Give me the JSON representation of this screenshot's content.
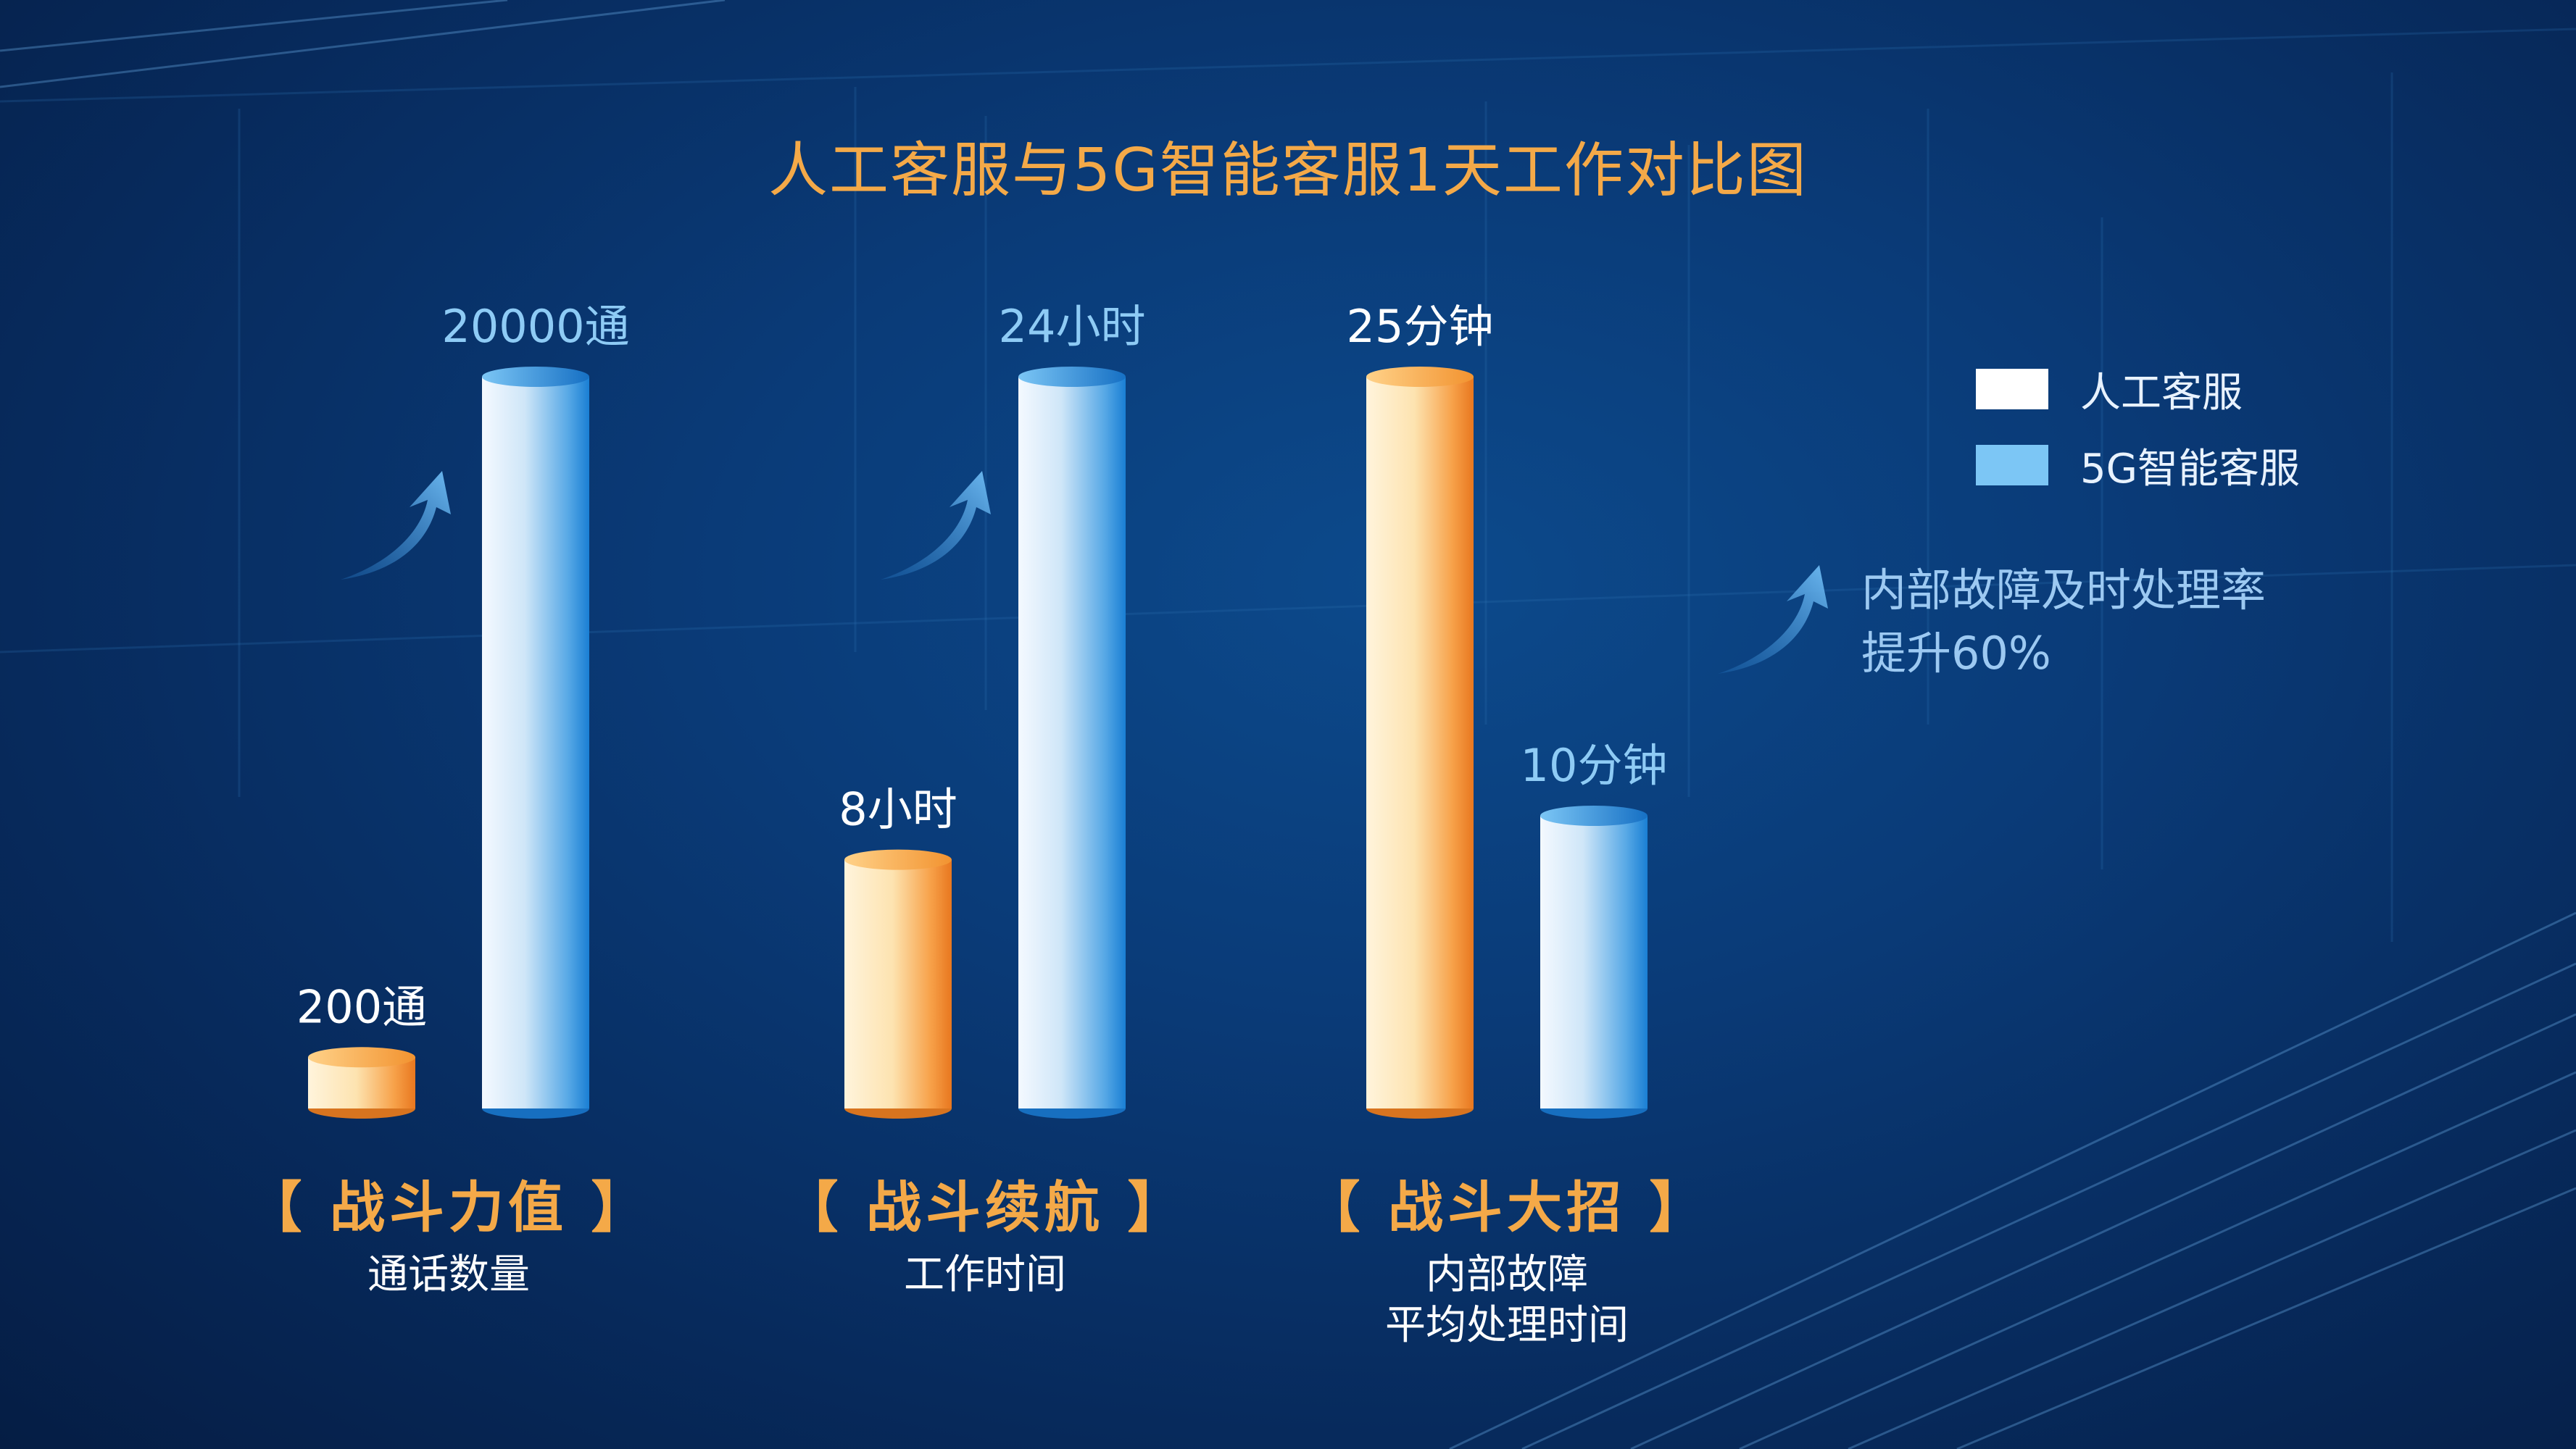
{
  "title": "人工客服与5G智能客服1天工作对比图",
  "legend": [
    {
      "label": "人工客服",
      "color": "#ffffff"
    },
    {
      "label": "5G智能客服",
      "color": "#7cc6f5"
    }
  ],
  "note": [
    "内部故障及时处理率",
    "提升60%"
  ],
  "groups": [
    {
      "title": "【 战斗力值 】",
      "subtitle": [
        "通话数量"
      ]
    },
    {
      "title": "【 战斗续航 】",
      "subtitle": [
        "工作时间"
      ]
    },
    {
      "title": "【 战斗大招 】",
      "subtitle": [
        "内部故障",
        "平均处理时间"
      ]
    }
  ],
  "colors": {
    "accent": "#f4a948",
    "human_bar": "#f08a2a",
    "ai_bar": "#1e88d8",
    "label_white": "#ffffff",
    "label_blue": "#8ecbf5"
  },
  "chart_data": {
    "type": "bar",
    "categories": [
      "通话数量",
      "工作时间",
      "内部故障平均处理时间"
    ],
    "series": [
      {
        "name": "人工客服",
        "values": [
          200,
          8,
          25
        ],
        "labels": [
          "200通",
          "8小时",
          "25分钟"
        ],
        "fill_fraction": [
          0.07,
          0.34,
          1.0
        ]
      },
      {
        "name": "5G智能客服",
        "values": [
          20000,
          24,
          10
        ],
        "labels": [
          "20000通",
          "24小时",
          "10分钟"
        ],
        "fill_fraction": [
          1.0,
          1.0,
          0.4
        ]
      }
    ],
    "trend_arrows": [
      "up",
      "up",
      "up"
    ]
  }
}
